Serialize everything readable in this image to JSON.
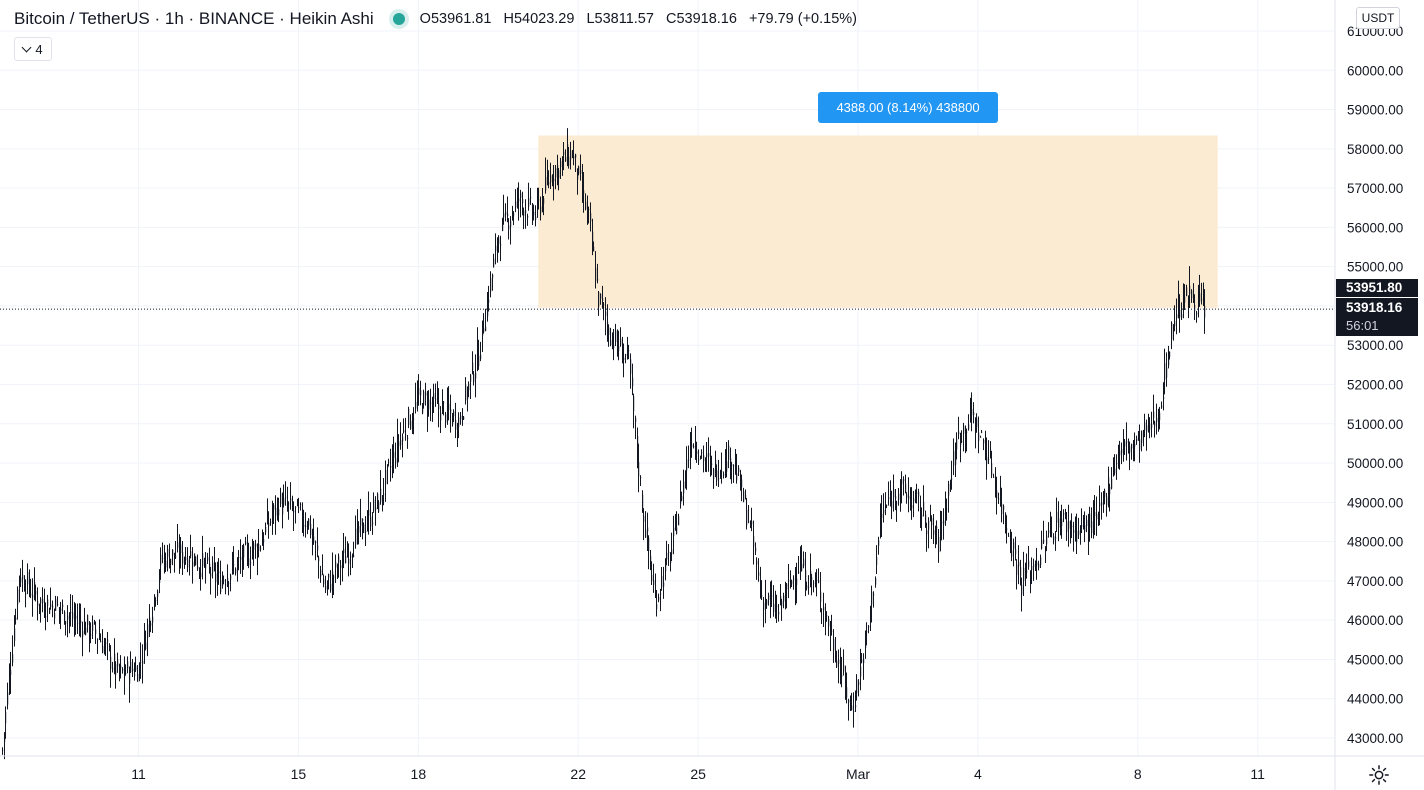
{
  "header": {
    "symbol": "Bitcoin / TetherUS · 1h · BINANCE · Heikin Ashi",
    "ohlc": {
      "o_label": "O",
      "o_value": "53961.81",
      "h_label": "H",
      "h_value": "54023.29",
      "l_label": "L",
      "l_value": "53811.57",
      "c_label": "C",
      "c_value": "53918.16",
      "change": "+79.79 (+0.15%)"
    },
    "indicators_count": "4",
    "currency": "USDT",
    "status_color": "#26a69a"
  },
  "measure": {
    "label": "4388.00 (8.14%) 438800",
    "box_color": "#fcebd3",
    "label_color": "#2196f3",
    "x_start": "Feb 21 2021",
    "x_end": "Mar 10 2021",
    "y_low": 53951.8,
    "y_high": 58339.8
  },
  "price_tags": {
    "upper": "53951.80",
    "current": "53918.16",
    "countdown": "56:01"
  },
  "chart_data": {
    "type": "candlestick",
    "title": "",
    "xlabel": "",
    "ylabel": "",
    "x_ticks": [
      "11",
      "15",
      "18",
      "22",
      "25",
      "Mar",
      "4",
      "8",
      "11"
    ],
    "y_ticks": [
      "43000.00",
      "44000.00",
      "45000.00",
      "46000.00",
      "47000.00",
      "48000.00",
      "49000.00",
      "50000.00",
      "51000.00",
      "52000.00",
      "53000.00",
      "55000.00",
      "56000.00",
      "57000.00",
      "58000.00",
      "59000.00",
      "60000.00",
      "61000.00"
    ],
    "ylim": [
      42500,
      61300
    ],
    "xlim": [
      "Feb 7 2021 14:00",
      "Mar 11 2021 23:00"
    ],
    "grid": true,
    "current_price": 53918.16,
    "anchors": [
      [
        "Feb 7 2021 14:00",
        42700
      ],
      [
        "Feb 8 2021 00:00",
        47200
      ],
      [
        "Feb 8 2021 12:00",
        46500
      ],
      [
        "Feb 9 2021 00:00",
        46300
      ],
      [
        "Feb 10 2021 00:00",
        45600
      ],
      [
        "Feb 10 2021 12:00",
        44600
      ],
      [
        "Feb 11 2021 00:00",
        44800
      ],
      [
        "Feb 11 2021 14:00",
        47600
      ],
      [
        "Feb 12 2021 06:00",
        47700
      ],
      [
        "Feb 13 2021 00:00",
        47000
      ],
      [
        "Feb 14 2021 00:00",
        47900
      ],
      [
        "Feb 14 2021 12:00",
        49000
      ],
      [
        "Feb 15 2021 06:00",
        48500
      ],
      [
        "Feb 15 2021 16:00",
        46800
      ],
      [
        "Feb 16 2021 12:00",
        48200
      ],
      [
        "Feb 17 2021 00:00",
        49000
      ],
      [
        "Feb 17 2021 12:00",
        50500
      ],
      [
        "Feb 18 2021 00:00",
        51600
      ],
      [
        "Feb 18 2021 12:00",
        51400
      ],
      [
        "Feb 19 2021 00:00",
        51100
      ],
      [
        "Feb 19 2021 12:00",
        52800
      ],
      [
        "Feb 20 2021 00:00",
        55800
      ],
      [
        "Feb 20 2021 12:00",
        56700
      ],
      [
        "Feb 20 2021 22:00",
        56300
      ],
      [
        "Feb 21 2021 08:00",
        57400
      ],
      [
        "Feb 21 2021 20:00",
        57900
      ],
      [
        "Feb 22 2021 06:00",
        56200
      ],
      [
        "Feb 22 2021 12:00",
        54200
      ],
      [
        "Feb 22 2021 20:00",
        53200
      ],
      [
        "Feb 23 2021 06:00",
        52600
      ],
      [
        "Feb 23 2021 14:00",
        49000
      ],
      [
        "Feb 23 2021 22:00",
        46500
      ],
      [
        "Feb 24 2021 08:00",
        47800
      ],
      [
        "Feb 24 2021 20:00",
        50700
      ],
      [
        "Feb 25 2021 08:00",
        49800
      ],
      [
        "Feb 25 2021 20:00",
        50200
      ],
      [
        "Feb 26 2021 06:00",
        48600
      ],
      [
        "Feb 26 2021 14:00",
        46600
      ],
      [
        "Feb 27 2021 00:00",
        46200
      ],
      [
        "Feb 27 2021 12:00",
        47400
      ],
      [
        "Feb 28 2021 00:00",
        46800
      ],
      [
        "Feb 28 2021 12:00",
        45000
      ],
      [
        "Feb 28 2021 20:00",
        43700
      ],
      [
        "Mar 1 2021 06:00",
        45800
      ],
      [
        "Mar 1 2021 14:00",
        48700
      ],
      [
        "Mar 2 2021 00:00",
        49400
      ],
      [
        "Mar 2 2021 12:00",
        48900
      ],
      [
        "Mar 3 2021 00:00",
        48000
      ],
      [
        "Mar 3 2021 12:00",
        50700
      ],
      [
        "Mar 3 2021 20:00",
        51200
      ],
      [
        "Mar 4 2021 06:00",
        50200
      ],
      [
        "Mar 4 2021 16:00",
        48600
      ],
      [
        "Mar 5 2021 02:00",
        47000
      ],
      [
        "Mar 5 2021 12:00",
        47600
      ],
      [
        "Mar 6 2021 00:00",
        48600
      ],
      [
        "Mar 6 2021 12:00",
        48300
      ],
      [
        "Mar 7 2021 00:00",
        48500
      ],
      [
        "Mar 7 2021 12:00",
        50300
      ],
      [
        "Mar 8 2021 00:00",
        50500
      ],
      [
        "Mar 8 2021 12:00",
        51200
      ],
      [
        "Mar 8 2021 22:00",
        53800
      ],
      [
        "Mar 9 2021 08:00",
        54300
      ],
      [
        "Mar 9 2021 16:00",
        53918
      ]
    ]
  }
}
